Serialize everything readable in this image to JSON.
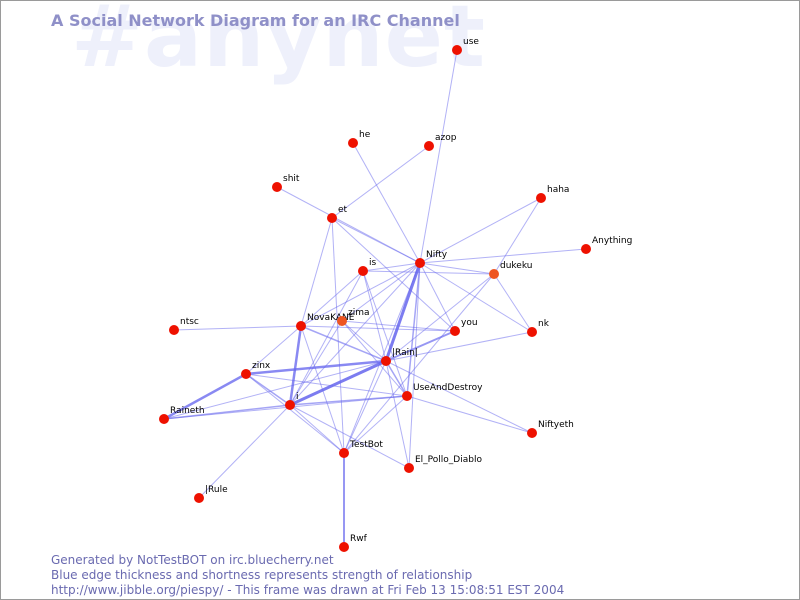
{
  "watermark": "#anynet",
  "title": "A Social Network Diagram for an IRC Channel",
  "footer": {
    "line1": "Generated by NotTestBOT on irc.bluecherry.net",
    "line2": "Blue edge thickness and shortness represents strength of relationship",
    "line3": "http://www.jibble.org/piespy/ - This frame was drawn at Fri Feb 13 15:08:51 EST 2004"
  },
  "colors": {
    "node": "#ee1100",
    "node_highlight": "#ee5522",
    "edge": "#6666ee",
    "title": "#8f90c8",
    "watermark": "#eef0fb"
  },
  "nodes": [
    {
      "id": "use",
      "label": "use"
    },
    {
      "id": "he",
      "label": "he"
    },
    {
      "id": "azop",
      "label": "azop"
    },
    {
      "id": "shit",
      "label": "shit"
    },
    {
      "id": "haha",
      "label": "haha"
    },
    {
      "id": "et",
      "label": "et"
    },
    {
      "id": "Anything",
      "label": "Anything"
    },
    {
      "id": "Nifty",
      "label": "Nifty"
    },
    {
      "id": "is",
      "label": "is"
    },
    {
      "id": "dukeku",
      "label": "dukeku",
      "highlight": true
    },
    {
      "id": "ntsc",
      "label": "ntsc"
    },
    {
      "id": "NovaKANE",
      "label": "NovaKANE"
    },
    {
      "id": "zima",
      "label": "zima",
      "highlight": true
    },
    {
      "id": "you",
      "label": "you"
    },
    {
      "id": "nk",
      "label": "nk"
    },
    {
      "id": "Rain",
      "label": "|Rain|"
    },
    {
      "id": "zinx",
      "label": "zinx"
    },
    {
      "id": "UseAndDestroy",
      "label": "UseAndDestroy"
    },
    {
      "id": "i",
      "label": "i"
    },
    {
      "id": "Raineth",
      "label": "Raineth"
    },
    {
      "id": "Niftyeth",
      "label": "Niftyeth"
    },
    {
      "id": "TestBot",
      "label": "TestBot"
    },
    {
      "id": "El_Pollo_Diablo",
      "label": "El_Pollo_Diablo"
    },
    {
      "id": "Rule",
      "label": "|Rule"
    },
    {
      "id": "Rwf",
      "label": "Rwf"
    }
  ],
  "edges": [
    {
      "a": "use",
      "b": "Nifty",
      "w": 1
    },
    {
      "a": "azop",
      "b": "et",
      "w": 1
    },
    {
      "a": "he",
      "b": "Nifty",
      "w": 1
    },
    {
      "a": "shit",
      "b": "Nifty",
      "w": 1
    },
    {
      "a": "haha",
      "b": "Nifty",
      "w": 1
    },
    {
      "a": "haha",
      "b": "dukeku",
      "w": 1
    },
    {
      "a": "et",
      "b": "Nifty",
      "w": 1
    },
    {
      "a": "et",
      "b": "NovaKANE",
      "w": 1
    },
    {
      "a": "et",
      "b": "TestBot",
      "w": 1
    },
    {
      "a": "et",
      "b": "you",
      "w": 1
    },
    {
      "a": "Anything",
      "b": "Nifty",
      "w": 1
    },
    {
      "a": "Nifty",
      "b": "dukeku",
      "w": 1
    },
    {
      "a": "Nifty",
      "b": "is",
      "w": 1
    },
    {
      "a": "Nifty",
      "b": "NovaKANE",
      "w": 1
    },
    {
      "a": "Nifty",
      "b": "zima",
      "w": 1
    },
    {
      "a": "Nifty",
      "b": "you",
      "w": 1
    },
    {
      "a": "Nifty",
      "b": "nk",
      "w": 1
    },
    {
      "a": "Nifty",
      "b": "Rain",
      "w": 3
    },
    {
      "a": "Nifty",
      "b": "UseAndDestroy",
      "w": 1.5
    },
    {
      "a": "Nifty",
      "b": "i",
      "w": 1
    },
    {
      "a": "Nifty",
      "b": "TestBot",
      "w": 1
    },
    {
      "a": "Nifty",
      "b": "El_Pollo_Diablo",
      "w": 1
    },
    {
      "a": "is",
      "b": "dukeku",
      "w": 1
    },
    {
      "a": "is",
      "b": "NovaKANE",
      "w": 1
    },
    {
      "a": "is",
      "b": "Rain",
      "w": 1
    },
    {
      "a": "is",
      "b": "i",
      "w": 1
    },
    {
      "a": "is",
      "b": "UseAndDestroy",
      "w": 1
    },
    {
      "a": "dukeku",
      "b": "Rain",
      "w": 1
    },
    {
      "a": "dukeku",
      "b": "nk",
      "w": 1
    },
    {
      "a": "dukeku",
      "b": "TestBot",
      "w": 1
    },
    {
      "a": "ntsc",
      "b": "NovaKANE",
      "w": 1
    },
    {
      "a": "NovaKANE",
      "b": "Rain",
      "w": 1.5
    },
    {
      "a": "NovaKANE",
      "b": "zinx",
      "w": 1
    },
    {
      "a": "NovaKANE",
      "b": "i",
      "w": 2.5
    },
    {
      "a": "NovaKANE",
      "b": "TestBot",
      "w": 1
    },
    {
      "a": "NovaKANE",
      "b": "you",
      "w": 1
    },
    {
      "a": "zima",
      "b": "Rain",
      "w": 1
    },
    {
      "a": "zima",
      "b": "i",
      "w": 1
    },
    {
      "a": "zima",
      "b": "you",
      "w": 1
    },
    {
      "a": "zima",
      "b": "UseAndDestroy",
      "w": 1
    },
    {
      "a": "you",
      "b": "Rain",
      "w": 2
    },
    {
      "a": "nk",
      "b": "Rain",
      "w": 1
    },
    {
      "a": "Rain",
      "b": "zinx",
      "w": 2.5
    },
    {
      "a": "Rain",
      "b": "i",
      "w": 3
    },
    {
      "a": "Rain",
      "b": "UseAndDestroy",
      "w": 1.5
    },
    {
      "a": "Rain",
      "b": "TestBot",
      "w": 1
    },
    {
      "a": "Rain",
      "b": "El_Pollo_Diablo",
      "w": 1
    },
    {
      "a": "Rain",
      "b": "Raineth",
      "w": 1
    },
    {
      "a": "Rain",
      "b": "Niftyeth",
      "w": 1
    },
    {
      "a": "zinx",
      "b": "i",
      "w": 1.5
    },
    {
      "a": "zinx",
      "b": "Raineth",
      "w": 2.5
    },
    {
      "a": "zinx",
      "b": "UseAndDestroy",
      "w": 1
    },
    {
      "a": "zinx",
      "b": "TestBot",
      "w": 1
    },
    {
      "a": "i",
      "b": "Raineth",
      "w": 1.5
    },
    {
      "a": "i",
      "b": "UseAndDestroy",
      "w": 1.5
    },
    {
      "a": "i",
      "b": "TestBot",
      "w": 1
    },
    {
      "a": "i",
      "b": "El_Pollo_Diablo",
      "w": 1
    },
    {
      "a": "i",
      "b": "Rule",
      "w": 1
    },
    {
      "a": "UseAndDestroy",
      "b": "Raineth",
      "w": 1
    },
    {
      "a": "UseAndDestroy",
      "b": "TestBot",
      "w": 1
    },
    {
      "a": "UseAndDestroy",
      "b": "Niftyeth",
      "w": 1
    },
    {
      "a": "TestBot",
      "b": "Rwf",
      "w": 2
    }
  ]
}
